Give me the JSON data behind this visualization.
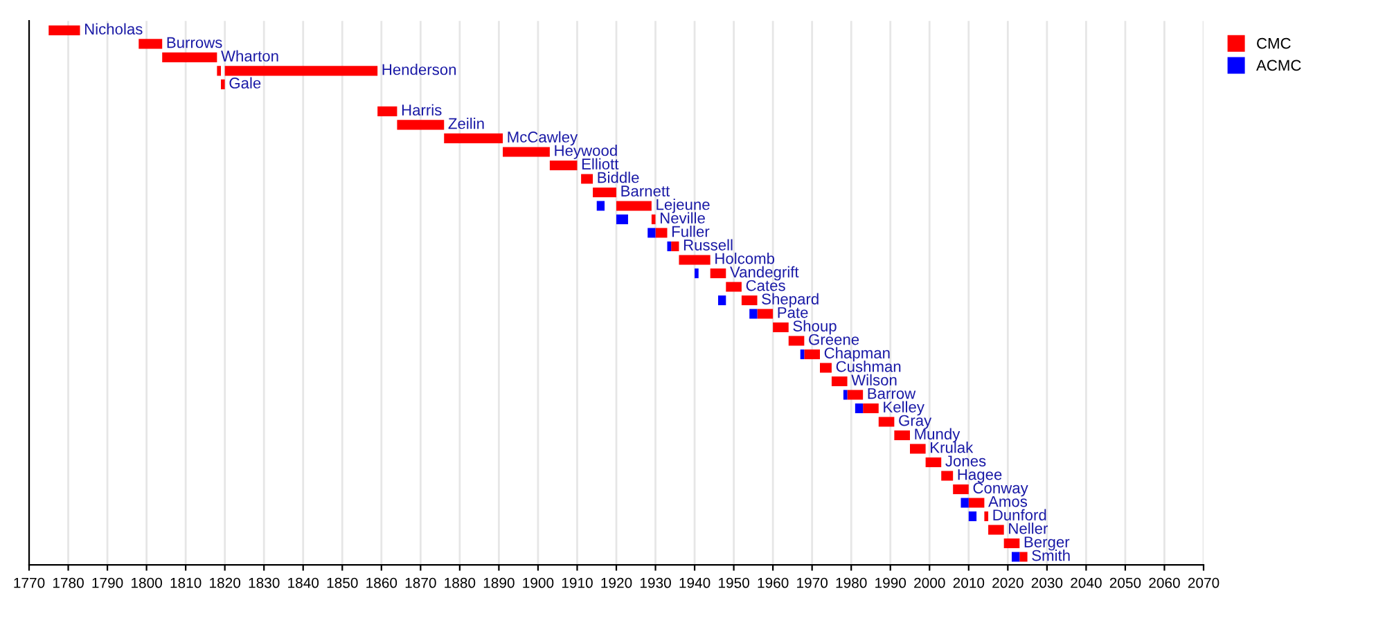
{
  "chart_data": {
    "type": "bar",
    "orientation": "horizontal",
    "categories": [
      "Nicholas",
      "Burrows",
      "Wharton",
      "Henderson",
      "Gale",
      null,
      "Harris",
      "Zeilin",
      "McCawley",
      "Heywood",
      "Elliott",
      "Biddle",
      "Barnett",
      "Lejeune",
      "Neville",
      "Fuller",
      "Russell",
      "Holcomb",
      "Vandegrift",
      "Cates",
      "Shepard",
      "Pate",
      "Shoup",
      "Greene",
      "Chapman",
      "Cushman",
      "Wilson",
      "Barrow",
      "Kelley",
      "Gray",
      "Mundy",
      "Krulak",
      "Jones",
      "Hagee",
      "Conway",
      "Amos",
      "Dunford",
      "Neller",
      "Berger",
      "Smith"
    ],
    "series": [
      {
        "name": "CMC",
        "color": "#ff0000",
        "base": [
          1775,
          1798,
          1804,
          1820,
          1819,
          null,
          1859,
          1864,
          1876,
          1891,
          1903,
          1911,
          1914,
          1920,
          1929,
          1930,
          1934,
          1936,
          1944,
          1948,
          1952,
          1956,
          1960,
          1964,
          1968,
          1972,
          1975,
          1979,
          1983,
          1987,
          1991,
          1995,
          1999,
          2003,
          2006,
          2010,
          2014,
          2015,
          2019,
          2023
        ],
        "values": [
          8,
          6,
          14,
          39,
          1,
          null,
          5,
          12,
          15,
          12,
          7,
          3,
          6,
          9,
          1,
          3,
          2,
          8,
          4,
          4,
          4,
          4,
          4,
          4,
          4,
          3,
          4,
          4,
          4,
          4,
          4,
          4,
          4,
          3,
          4,
          4,
          1,
          4,
          4,
          2
        ]
      },
      {
        "name": "ACMC",
        "color": "#0000ff",
        "base": [
          null,
          null,
          null,
          null,
          null,
          null,
          null,
          null,
          null,
          null,
          null,
          null,
          null,
          1915,
          1920,
          1928,
          1933,
          null,
          1940,
          null,
          1946,
          1954,
          null,
          null,
          1967,
          null,
          null,
          1978,
          1981,
          null,
          null,
          null,
          null,
          null,
          null,
          2008,
          2010,
          null,
          null,
          2021
        ],
        "values": [
          null,
          null,
          null,
          null,
          null,
          null,
          null,
          null,
          null,
          null,
          null,
          null,
          null,
          2,
          3,
          2,
          1,
          null,
          1,
          null,
          2,
          2,
          null,
          null,
          1,
          null,
          null,
          1,
          2,
          null,
          null,
          null,
          null,
          null,
          null,
          2,
          2,
          null,
          null,
          2
        ]
      },
      {
        "color": "#ff0000",
        "base": [
          null,
          null,
          null,
          1818,
          null,
          null,
          null,
          null,
          null,
          null,
          null,
          null,
          null,
          null,
          null,
          null,
          null,
          null,
          null,
          null,
          null,
          null,
          null,
          null,
          null,
          null,
          null,
          null,
          null,
          null,
          null,
          null,
          null,
          null,
          null,
          null,
          null,
          null,
          null,
          null
        ],
        "values": [
          null,
          null,
          null,
          1,
          null,
          null,
          null,
          null,
          null,
          null,
          null,
          null,
          null,
          null,
          null,
          null,
          null,
          null,
          null,
          null,
          null,
          null,
          null,
          null,
          null,
          null,
          null,
          null,
          null,
          null,
          null,
          null,
          null,
          null,
          null,
          null,
          null,
          null,
          null,
          null
        ]
      }
    ],
    "xlim": [
      1770,
      2070
    ],
    "xticks": [
      1770,
      1780,
      1790,
      1800,
      1810,
      1820,
      1830,
      1840,
      1850,
      1860,
      1870,
      1880,
      1890,
      1900,
      1910,
      1920,
      1930,
      1940,
      1950,
      1960,
      1970,
      1980,
      1990,
      2000,
      2010,
      2020,
      2030,
      2040,
      2050,
      2060,
      2070
    ],
    "grid": "x",
    "tick_labels": "x",
    "legend": "top right"
  }
}
